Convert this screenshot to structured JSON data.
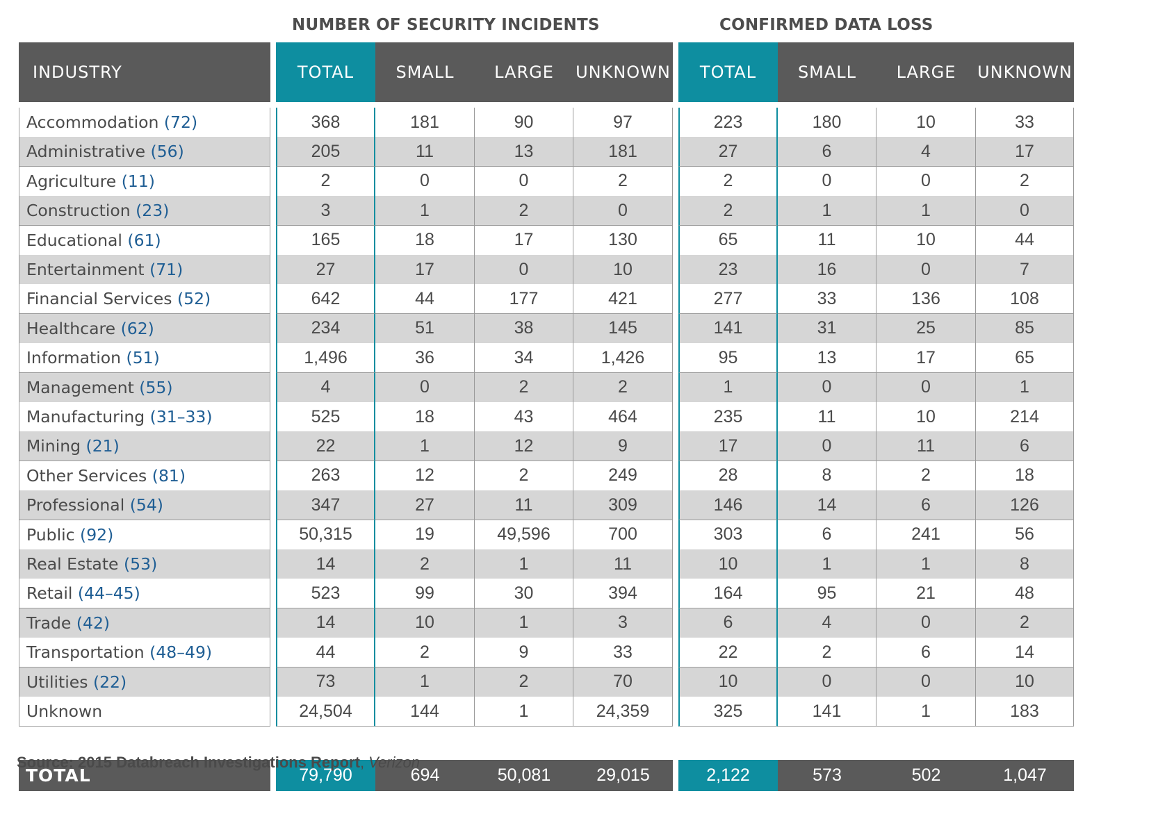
{
  "group_titles": {
    "incidents": "NUMBER OF SECURITY INCIDENTS",
    "data_loss": "CONFIRMED DATA LOSS"
  },
  "header": {
    "industry": "INDUSTRY",
    "incidents": [
      "TOTAL",
      "SMALL",
      "LARGE",
      "UNKNOWN"
    ],
    "data_loss": [
      "TOTAL",
      "SMALL",
      "LARGE",
      "UNKNOWN"
    ]
  },
  "rows": [
    {
      "industry": "Accommodation",
      "code": "(72)",
      "incidents": [
        "368",
        "181",
        "90",
        "97"
      ],
      "data_loss": [
        "223",
        "180",
        "10",
        "33"
      ]
    },
    {
      "industry": "Administrative",
      "code": "(56)",
      "incidents": [
        "205",
        "11",
        "13",
        "181"
      ],
      "data_loss": [
        "27",
        "6",
        "4",
        "17"
      ]
    },
    {
      "industry": "Agriculture",
      "code": "(11)",
      "incidents": [
        "2",
        "0",
        "0",
        "2"
      ],
      "data_loss": [
        "2",
        "0",
        "0",
        "2"
      ]
    },
    {
      "industry": "Construction",
      "code": "(23)",
      "incidents": [
        "3",
        "1",
        "2",
        "0"
      ],
      "data_loss": [
        "2",
        "1",
        "1",
        "0"
      ]
    },
    {
      "industry": "Educational",
      "code": "(61)",
      "incidents": [
        "165",
        "18",
        "17",
        "130"
      ],
      "data_loss": [
        "65",
        "11",
        "10",
        "44"
      ]
    },
    {
      "industry": "Entertainment",
      "code": "(71)",
      "incidents": [
        "27",
        "17",
        "0",
        "10"
      ],
      "data_loss": [
        "23",
        "16",
        "0",
        "7"
      ]
    },
    {
      "industry": "Financial Services",
      "code": "(52)",
      "incidents": [
        "642",
        "44",
        "177",
        "421"
      ],
      "data_loss": [
        "277",
        "33",
        "136",
        "108"
      ]
    },
    {
      "industry": "Healthcare",
      "code": "(62)",
      "incidents": [
        "234",
        "51",
        "38",
        "145"
      ],
      "data_loss": [
        "141",
        "31",
        "25",
        "85"
      ]
    },
    {
      "industry": "Information",
      "code": "(51)",
      "incidents": [
        "1,496",
        "36",
        "34",
        "1,426"
      ],
      "data_loss": [
        "95",
        "13",
        "17",
        "65"
      ]
    },
    {
      "industry": "Management",
      "code": "(55)",
      "incidents": [
        "4",
        "0",
        "2",
        "2"
      ],
      "data_loss": [
        "1",
        "0",
        "0",
        "1"
      ]
    },
    {
      "industry": "Manufacturing",
      "code": "(31–33)",
      "incidents": [
        "525",
        "18",
        "43",
        "464"
      ],
      "data_loss": [
        "235",
        "11",
        "10",
        "214"
      ]
    },
    {
      "industry": "Mining",
      "code": "(21)",
      "incidents": [
        "22",
        "1",
        "12",
        "9"
      ],
      "data_loss": [
        "17",
        "0",
        "11",
        "6"
      ]
    },
    {
      "industry": "Other Services",
      "code": "(81)",
      "incidents": [
        "263",
        "12",
        "2",
        "249"
      ],
      "data_loss": [
        "28",
        "8",
        "2",
        "18"
      ]
    },
    {
      "industry": "Professional",
      "code": "(54)",
      "incidents": [
        "347",
        "27",
        "11",
        "309"
      ],
      "data_loss": [
        "146",
        "14",
        "6",
        "126"
      ]
    },
    {
      "industry": "Public",
      "code": "(92)",
      "incidents": [
        "50,315",
        "19",
        "49,596",
        "700"
      ],
      "data_loss": [
        "303",
        "6",
        "241",
        "56"
      ]
    },
    {
      "industry": "Real Estate",
      "code": "(53)",
      "incidents": [
        "14",
        "2",
        "1",
        "11"
      ],
      "data_loss": [
        "10",
        "1",
        "1",
        "8"
      ]
    },
    {
      "industry": "Retail",
      "code": "(44–45)",
      "incidents": [
        "523",
        "99",
        "30",
        "394"
      ],
      "data_loss": [
        "164",
        "95",
        "21",
        "48"
      ]
    },
    {
      "industry": "Trade",
      "code": "(42)",
      "incidents": [
        "14",
        "10",
        "1",
        "3"
      ],
      "data_loss": [
        "6",
        "4",
        "0",
        "2"
      ]
    },
    {
      "industry": "Transportation",
      "code": "(48–49)",
      "incidents": [
        "44",
        "2",
        "9",
        "33"
      ],
      "data_loss": [
        "22",
        "2",
        "6",
        "14"
      ]
    },
    {
      "industry": "Utilities",
      "code": "(22)",
      "incidents": [
        "73",
        "1",
        "2",
        "70"
      ],
      "data_loss": [
        "10",
        "0",
        "0",
        "10"
      ]
    },
    {
      "industry": "Unknown",
      "code": "",
      "incidents": [
        "24,504",
        "144",
        "1",
        "24,359"
      ],
      "data_loss": [
        "325",
        "141",
        "1",
        "183"
      ]
    }
  ],
  "total": {
    "label": "TOTAL",
    "incidents": [
      "79,790",
      "694",
      "50,081",
      "29,015"
    ],
    "data_loss": [
      "2,122",
      "573",
      "502",
      "1,047"
    ]
  },
  "source": {
    "prefix": "Source: 2015 Databreach Investigations Report",
    "separator": ", ",
    "publisher": "Verizon"
  },
  "colors": {
    "header_gray": "#5a5a5a",
    "teal": "#0e8ea0",
    "code_blue": "#1f5e94",
    "stripe_gray": "#d6d6d6"
  }
}
